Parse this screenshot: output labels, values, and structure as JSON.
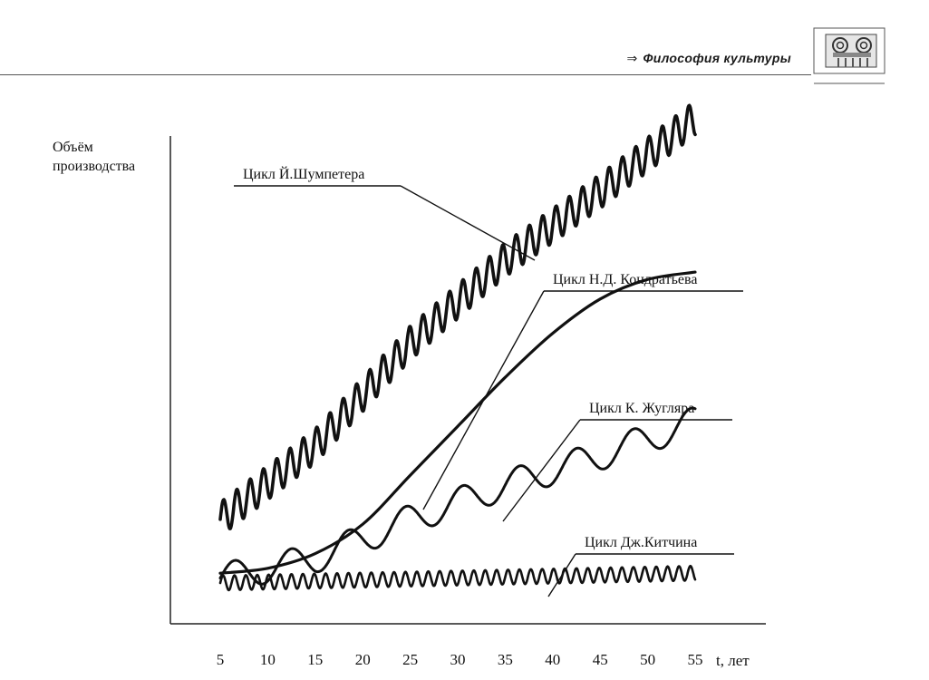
{
  "header": {
    "arrow": "⇒",
    "title": "Философия культуры",
    "logo_icon": "ionic-capital-icon"
  },
  "chart_data": {
    "type": "line",
    "ylabel_line1": "Объём",
    "ylabel_line2": "производства",
    "xlabel": "t, лет",
    "x_ticks": [
      5,
      10,
      15,
      20,
      25,
      30,
      35,
      40,
      45,
      50,
      55
    ],
    "xlim": [
      0,
      60
    ],
    "ylim": [
      0,
      100
    ],
    "grid": false,
    "series": [
      {
        "name": "Цикл Й.Шумпетера",
        "trend": [
          [
            5,
            18
          ],
          [
            15,
            33
          ],
          [
            25,
            54
          ],
          [
            35,
            71
          ],
          [
            45,
            85
          ],
          [
            55,
            100
          ]
        ],
        "wave_period": 1.4,
        "wave_amplitude": 3.5
      },
      {
        "name": "Цикл Н.Д. Кондратьева",
        "x": [
          5,
          10,
          15,
          20,
          25,
          30,
          35,
          40,
          45,
          50,
          55
        ],
        "y": [
          7,
          8,
          11,
          17,
          27,
          37,
          47,
          56,
          63,
          67,
          68.5
        ]
      },
      {
        "name": "Цикл К. Жугляра",
        "trend": [
          [
            5,
            6
          ],
          [
            15,
            10
          ],
          [
            25,
            18
          ],
          [
            35,
            25
          ],
          [
            45,
            31
          ],
          [
            55,
            38
          ]
        ],
        "wave_period": 6,
        "wave_amplitude": 3
      },
      {
        "name": "Цикл Дж.Китчина",
        "trend": [
          [
            5,
            5
          ],
          [
            55,
            7
          ]
        ],
        "wave_period": 1.2,
        "wave_amplitude": 1.5
      }
    ]
  }
}
